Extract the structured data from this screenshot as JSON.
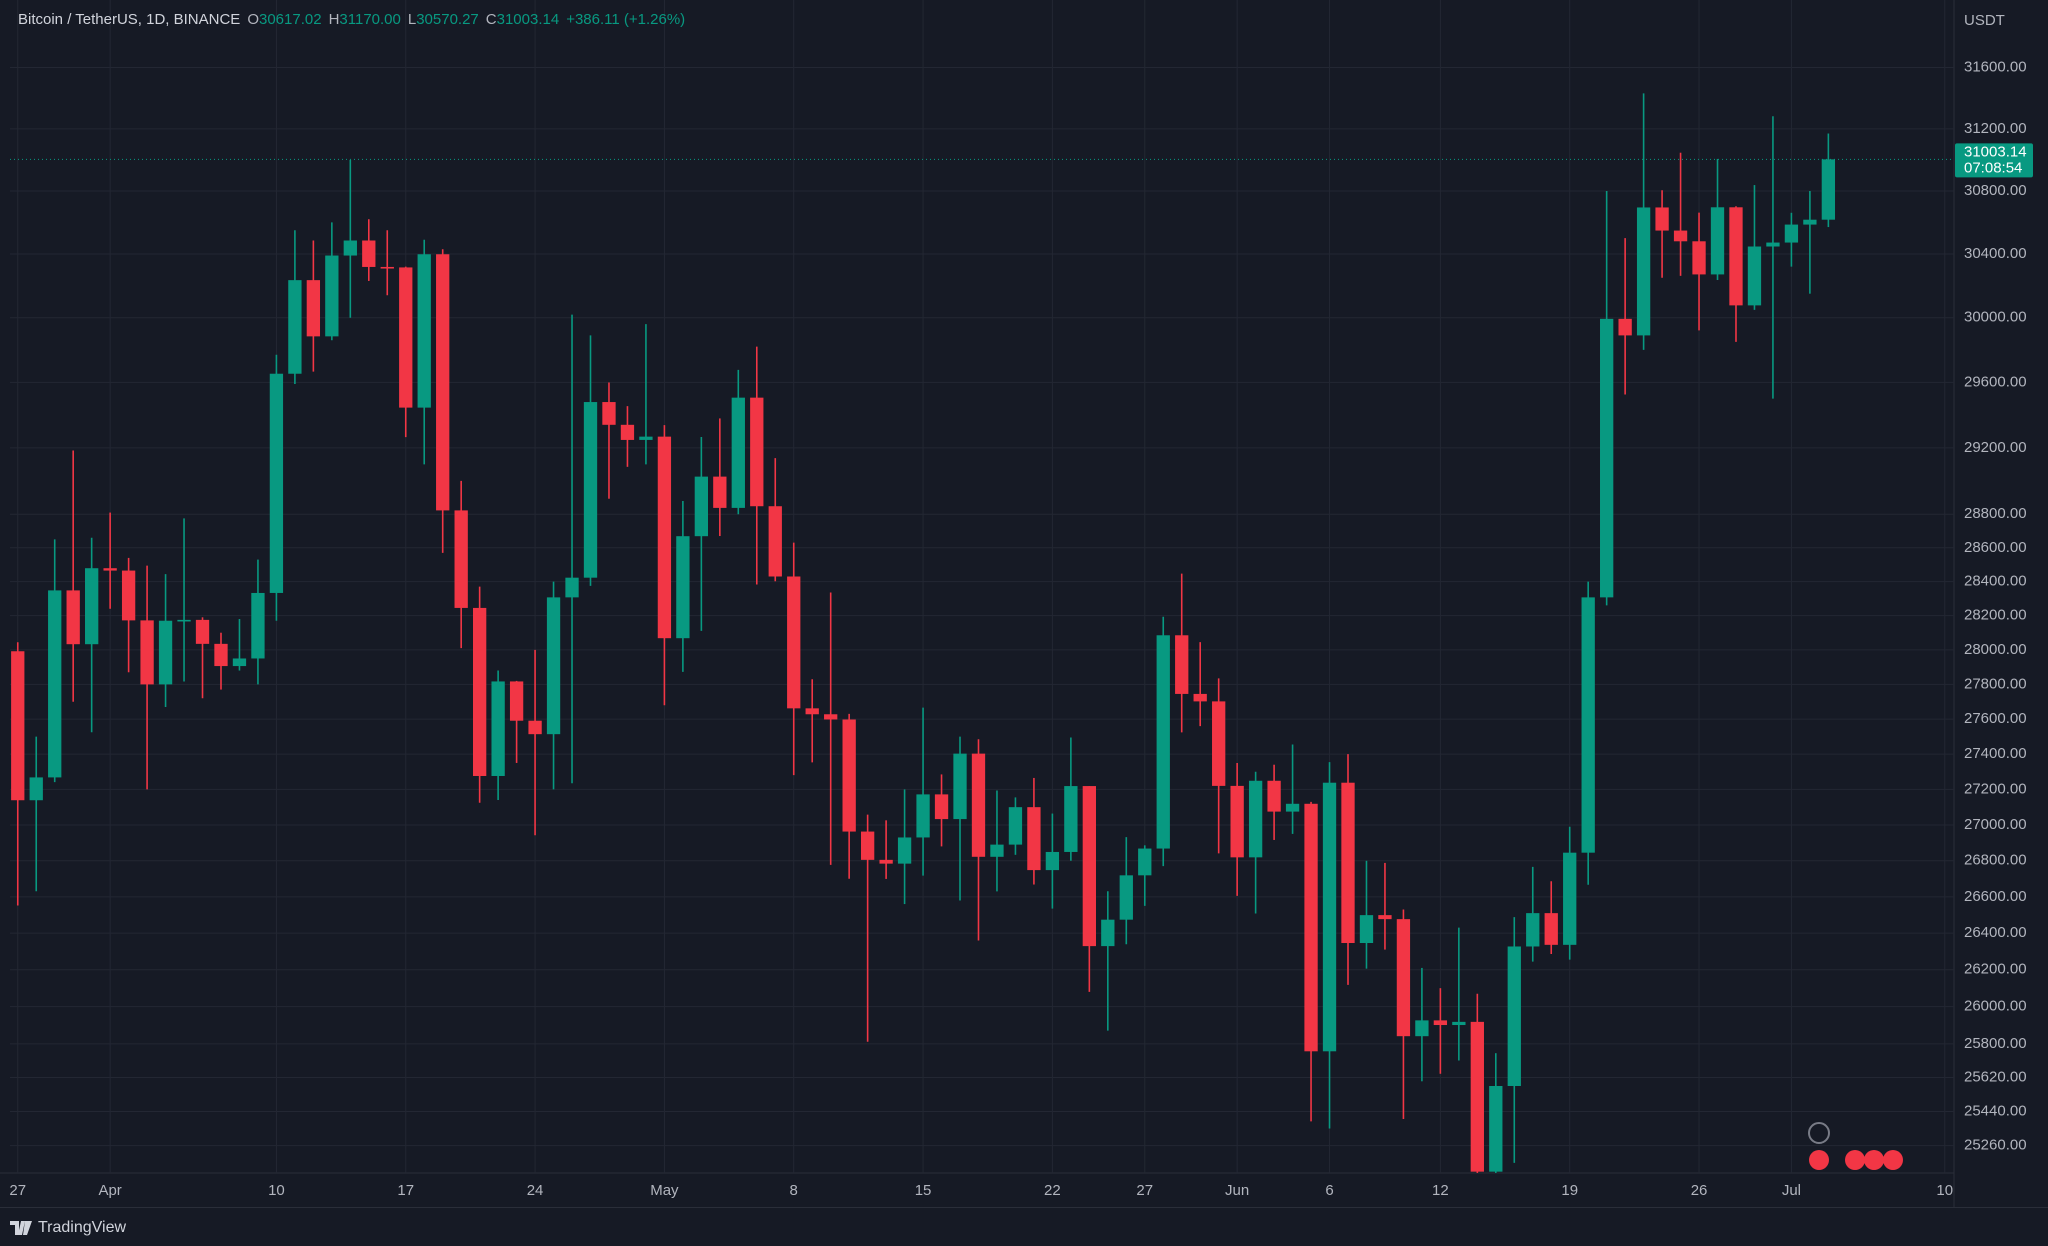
{
  "chart_data": {
    "type": "candlestick",
    "title": "Bitcoin / TetherUS, 1D, BINANCE",
    "legend_values": [
      {
        "label": "O",
        "value": "30617.02"
      },
      {
        "label": "H",
        "value": "31170.00"
      },
      {
        "label": "L",
        "value": "30570.27"
      },
      {
        "label": "C",
        "value": "31003.14"
      }
    ],
    "change": "+386.11 (+1.26%)",
    "currency": "USDT",
    "countdown": "07:08:54",
    "up_color": "#089981",
    "down_color": "#f23645",
    "log_scale": true,
    "grid": true,
    "open": [
      27992,
      27139,
      27268,
      28348,
      28033,
      28479,
      28465,
      28172,
      27800,
      28170,
      28175,
      28035,
      27906,
      27950,
      28333,
      29653,
      30235,
      29884,
      30390,
      30485,
      30318,
      30315,
      29445,
      30398,
      28823,
      28245,
      27276,
      27817,
      27591,
      27514,
      28307,
      28423,
      29479,
      29340,
      29248,
      29268,
      28068,
      28669,
      29026,
      28838,
      29506,
      28848,
      28430,
      27662,
      27628,
      27598,
      26963,
      26805,
      26784,
      26930,
      27172,
      27033,
      27403,
      26822,
      26890,
      27100,
      26748,
      26849,
      27219,
      26329,
      26474,
      26719,
      26868,
      28085,
      27745,
      27702,
      27220,
      26819,
      27249,
      27075,
      27119,
      25760,
      27238,
      26346,
      26499,
      26477,
      25841,
      25926,
      25901,
      25918,
      25124,
      25575,
      26327,
      26510,
      26336,
      26845,
      28307,
      29993,
      29890,
      30695,
      30548,
      30480,
      30271,
      30696,
      30077,
      30447,
      30472,
      30586,
      30617.02
    ],
    "high": [
      28044,
      27500,
      28650,
      29184,
      28660,
      28810,
      28540,
      28494,
      28444,
      28775,
      28190,
      28100,
      28180,
      28530,
      29770,
      30550,
      30485,
      30600,
      31000,
      30620,
      30550,
      30320,
      30490,
      30430,
      29000,
      28370,
      27880,
      27820,
      28000,
      28400,
      30019,
      29890,
      29599,
      29454,
      29960,
      29338,
      28879,
      29266,
      29379,
      29677,
      29820,
      29138,
      28631,
      27830,
      28336,
      27630,
      27058,
      27026,
      27200,
      27666,
      27285,
      27500,
      27485,
      27194,
      27155,
      27265,
      27064,
      27495,
      27219,
      26631,
      26932,
      26886,
      28193,
      28447,
      28045,
      27835,
      27350,
      27300,
      27340,
      27455,
      27130,
      27355,
      27400,
      26800,
      26788,
      26530,
      26210,
      26100,
      26430,
      26070,
      25750,
      26488,
      26766,
      26686,
      26990,
      28400,
      30800,
      30500,
      31431,
      30805,
      31046,
      30662,
      31006,
      30703,
      30838,
      31282,
      30661,
      30800,
      31170
    ],
    "low": [
      26552,
      26631,
      27241,
      27700,
      27525,
      28240,
      27870,
      27200,
      27670,
      27817,
      27720,
      27770,
      27880,
      27800,
      28170,
      29590,
      29666,
      29860,
      30000,
      30230,
      30140,
      29265,
      29100,
      28570,
      28010,
      27125,
      27140,
      27350,
      26942,
      27200,
      27235,
      28375,
      28893,
      29085,
      29100,
      27680,
      27872,
      28111,
      28670,
      28800,
      28383,
      28402,
      27281,
      27353,
      26777,
      26700,
      25811,
      26699,
      26560,
      26717,
      26880,
      26580,
      26360,
      26630,
      26833,
      26668,
      26535,
      26800,
      26080,
      25871,
      26339,
      26550,
      26770,
      27524,
      27560,
      26841,
      26605,
      26508,
      26916,
      26950,
      25388,
      25350,
      26118,
      26206,
      26310,
      25400,
      25600,
      25640,
      25711,
      25117,
      25117,
      25170,
      26244,
      26286,
      26255,
      26667,
      28260,
      29525,
      29800,
      30250,
      30262,
      29921,
      30236,
      29850,
      30049,
      29500,
      30320,
      30150,
      30570.27
    ],
    "close": [
      27139,
      27268,
      28348,
      28033,
      28479,
      28465,
      28172,
      27800,
      28170,
      28175,
      28035,
      27906,
      27950,
      28333,
      29653,
      30235,
      29884,
      30390,
      30485,
      30318,
      30315,
      29445,
      30398,
      28823,
      28245,
      27276,
      27817,
      27591,
      27514,
      28307,
      28423,
      29479,
      29340,
      29248,
      29268,
      28068,
      28669,
      29026,
      28838,
      29506,
      28848,
      28430,
      27662,
      27628,
      27598,
      26963,
      26805,
      26784,
      26930,
      27172,
      27033,
      27403,
      26822,
      26890,
      27100,
      26748,
      26849,
      27219,
      26329,
      26474,
      26719,
      26868,
      28085,
      27745,
      27702,
      27220,
      26819,
      27249,
      27075,
      27119,
      25760,
      27238,
      26346,
      26499,
      26477,
      25841,
      25926,
      25901,
      25918,
      25124,
      25575,
      26327,
      26510,
      26336,
      26845,
      28307,
      29993,
      29890,
      30695,
      30548,
      30480,
      30271,
      30696,
      30077,
      30447,
      30472,
      30586,
      30617.02,
      31003.14
    ],
    "xlim": [
      -0.42,
      104.8
    ],
    "xticks": [
      {
        "value": 0,
        "label": "27"
      },
      {
        "value": 5,
        "label": "Apr"
      },
      {
        "value": 14,
        "label": "10"
      },
      {
        "value": 21,
        "label": "17"
      },
      {
        "value": 28,
        "label": "24"
      },
      {
        "value": 35,
        "label": "May"
      },
      {
        "value": 42,
        "label": "8"
      },
      {
        "value": 49,
        "label": "15"
      },
      {
        "value": 56,
        "label": "22"
      },
      {
        "value": 61,
        "label": "27"
      },
      {
        "value": 66,
        "label": "Jun"
      },
      {
        "value": 71,
        "label": "6"
      },
      {
        "value": 77,
        "label": "12"
      },
      {
        "value": 84,
        "label": "19"
      },
      {
        "value": 91,
        "label": "26"
      },
      {
        "value": 96,
        "label": "Jul"
      },
      {
        "value": 104.3,
        "label": "10"
      }
    ],
    "ylim": [
      25117,
      32000
    ],
    "yticks": [
      {
        "value": 31600,
        "label": "31600.00"
      },
      {
        "value": 31200,
        "label": "31200.00"
      },
      {
        "value": 30800,
        "label": "30800.00"
      },
      {
        "value": 30400,
        "label": "30400.00"
      },
      {
        "value": 30000,
        "label": "30000.00"
      },
      {
        "value": 29600,
        "label": "29600.00"
      },
      {
        "value": 29200,
        "label": "29200.00"
      },
      {
        "value": 28800,
        "label": "28800.00"
      },
      {
        "value": 28600,
        "label": "28600.00"
      },
      {
        "value": 28400,
        "label": "28400.00"
      },
      {
        "value": 28200,
        "label": "28200.00"
      },
      {
        "value": 28000,
        "label": "28000.00"
      },
      {
        "value": 27800,
        "label": "27800.00"
      },
      {
        "value": 27600,
        "label": "27600.00"
      },
      {
        "value": 27400,
        "label": "27400.00"
      },
      {
        "value": 27200,
        "label": "27200.00"
      },
      {
        "value": 27000,
        "label": "27000.00"
      },
      {
        "value": 26800,
        "label": "26800.00"
      },
      {
        "value": 26600,
        "label": "26600.00"
      },
      {
        "value": 26400,
        "label": "26400.00"
      },
      {
        "value": 26200,
        "label": "26200.00"
      },
      {
        "value": 26000,
        "label": "26000.00"
      },
      {
        "value": 25800,
        "label": "25800.00"
      },
      {
        "value": 25620,
        "label": "25620.00"
      },
      {
        "value": 25440,
        "label": "25440.00"
      },
      {
        "value": 25260,
        "label": "25260.00"
      }
    ]
  },
  "footer": {
    "brand": "TradingView"
  }
}
